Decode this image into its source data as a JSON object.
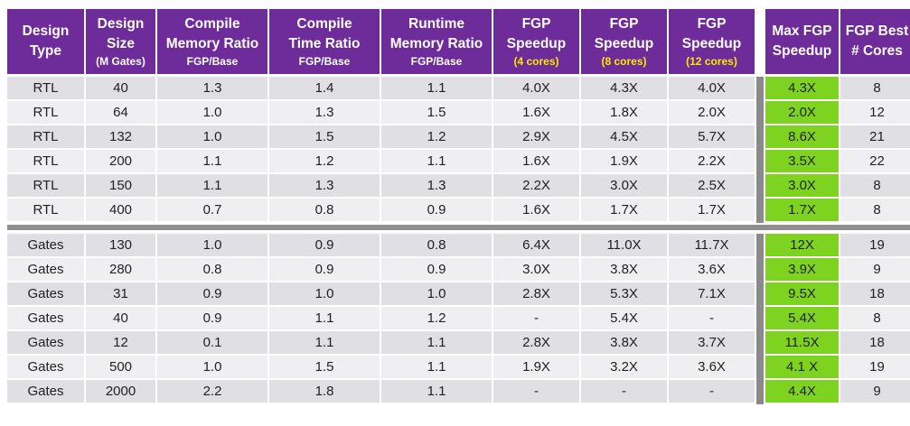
{
  "headers": [
    {
      "lines": [
        "Design",
        "Type"
      ],
      "sub": "",
      "sub_highlight": false
    },
    {
      "lines": [
        "Design",
        "Size"
      ],
      "sub": "(M Gates)",
      "sub_highlight": false
    },
    {
      "lines": [
        "Compile",
        "Memory Ratio"
      ],
      "sub": "FGP/Base",
      "sub_highlight": false
    },
    {
      "lines": [
        "Compile",
        "Time Ratio"
      ],
      "sub": "FGP/Base",
      "sub_highlight": false
    },
    {
      "lines": [
        "Runtime",
        "Memory Ratio"
      ],
      "sub": "FGP/Base",
      "sub_highlight": false
    },
    {
      "lines": [
        "FGP",
        "Speedup"
      ],
      "sub": "(4 cores)",
      "sub_highlight": true
    },
    {
      "lines": [
        "FGP",
        "Speedup"
      ],
      "sub": "(8 cores)",
      "sub_highlight": true
    },
    {
      "lines": [
        "FGP",
        "Speedup"
      ],
      "sub": "(12 cores)",
      "sub_highlight": true
    },
    {
      "lines": [
        "Max FGP",
        "Speedup"
      ],
      "sub": "",
      "sub_highlight": false
    },
    {
      "lines": [
        "FGP Best",
        "# Cores"
      ],
      "sub": "",
      "sub_highlight": false
    }
  ],
  "groups": [
    {
      "rows": [
        [
          "RTL",
          "40",
          "1.3",
          "1.4",
          "1.1",
          "4.0X",
          "4.3X",
          "4.0X",
          "4.3X",
          "8"
        ],
        [
          "RTL",
          "64",
          "1.0",
          "1.3",
          "1.5",
          "1.6X",
          "1.8X",
          "2.0X",
          "2.0X",
          "12"
        ],
        [
          "RTL",
          "132",
          "1.0",
          "1.5",
          "1.2",
          "2.9X",
          "4.5X",
          "5.7X",
          "8.6X",
          "21"
        ],
        [
          "RTL",
          "200",
          "1.1",
          "1.2",
          "1.1",
          "1.6X",
          "1.9X",
          "2.2X",
          "3.5X",
          "22"
        ],
        [
          "RTL",
          "150",
          "1.1",
          "1.3",
          "1.3",
          "2.2X",
          "3.0X",
          "2.5X",
          "3.0X",
          "8"
        ],
        [
          "RTL",
          "400",
          "0.7",
          "0.8",
          "0.9",
          "1.6X",
          "1.7X",
          "1.7X",
          "1.7X",
          "8"
        ]
      ]
    },
    {
      "rows": [
        [
          "Gates",
          "130",
          "1.0",
          "0.9",
          "0.8",
          "6.4X",
          "11.0X",
          "11.7X",
          "12X",
          "19"
        ],
        [
          "Gates",
          "280",
          "0.8",
          "0.9",
          "0.9",
          "3.0X",
          "3.8X",
          "3.6X",
          "3.9X",
          "9"
        ],
        [
          "Gates",
          "31",
          "0.9",
          "1.0",
          "1.0",
          "2.8X",
          "5.3X",
          "7.1X",
          "9.5X",
          "18"
        ],
        [
          "Gates",
          "40",
          "0.9",
          "1.1",
          "1.2",
          "-",
          "5.4X",
          "-",
          "5.4X",
          "8"
        ],
        [
          "Gates",
          "12",
          "0.1",
          "1.1",
          "1.1",
          "2.8X",
          "3.8X",
          "3.7X",
          "11.5X",
          "18"
        ],
        [
          "Gates",
          "500",
          "1.0",
          "1.5",
          "1.1",
          "1.9X",
          "3.2X",
          "3.6X",
          "4.1 X",
          "19"
        ],
        [
          "Gates",
          "2000",
          "2.2",
          "1.8",
          "1.1",
          "-",
          "-",
          "-",
          "4.4X",
          "9"
        ]
      ]
    }
  ],
  "colors": {
    "header_bg": "#6e2b9a",
    "header_text": "#ffffff",
    "cores_highlight": "#ffe800",
    "max_speedup_bg": "#7ed321",
    "row_odd": "#dfdfe4",
    "row_even": "#efeff2",
    "separator": "#8a8a8a"
  }
}
